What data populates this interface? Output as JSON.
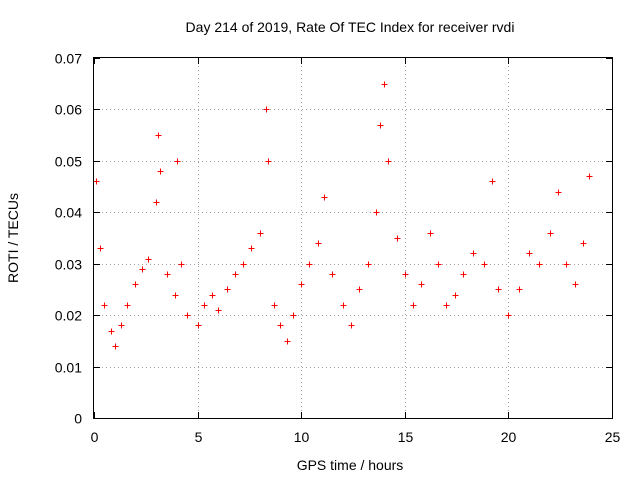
{
  "chart_data": {
    "type": "scatter",
    "title": "Day 214 of 2019, Rate Of TEC Index for receiver rvdi",
    "xlabel": "GPS time / hours",
    "ylabel": "ROTI / TECUs",
    "xlim": [
      0,
      25
    ],
    "ylim": [
      0,
      0.07
    ],
    "xticks": [
      0,
      5,
      10,
      15,
      20,
      25
    ],
    "xtick_labels": [
      "0",
      "5",
      "10",
      "15",
      "20",
      "25"
    ],
    "yticks": [
      0,
      0.01,
      0.02,
      0.03,
      0.04,
      0.05,
      0.06,
      0.07
    ],
    "ytick_labels": [
      "0",
      "0.01",
      "0.02",
      "0.03",
      "0.04",
      "0.05",
      "0.06",
      "0.07"
    ],
    "grid": true,
    "marker": "plus",
    "color": "#ff0000",
    "series": [
      {
        "name": "ROTI",
        "x": [
          0.1,
          0.3,
          0.5,
          0.8,
          1.0,
          1.3,
          1.6,
          2.0,
          2.3,
          2.6,
          3.0,
          3.1,
          3.2,
          3.5,
          3.9,
          4.0,
          4.2,
          4.5,
          5.0,
          5.3,
          5.7,
          6.0,
          6.4,
          6.8,
          7.2,
          7.6,
          8.0,
          8.3,
          8.4,
          8.7,
          9.0,
          9.3,
          9.6,
          10.0,
          10.4,
          10.8,
          11.1,
          11.5,
          12.0,
          12.4,
          12.8,
          13.2,
          13.6,
          13.8,
          14.0,
          14.2,
          14.6,
          15.0,
          15.4,
          15.8,
          16.2,
          16.6,
          17.0,
          17.4,
          17.8,
          18.3,
          18.8,
          19.2,
          19.5,
          20.0,
          20.5,
          21.0,
          21.5,
          22.0,
          22.4,
          22.8,
          23.2,
          23.6,
          23.9
        ],
        "y": [
          0.046,
          0.033,
          0.022,
          0.017,
          0.014,
          0.018,
          0.022,
          0.026,
          0.029,
          0.031,
          0.042,
          0.055,
          0.048,
          0.028,
          0.024,
          0.05,
          0.03,
          0.02,
          0.018,
          0.022,
          0.024,
          0.021,
          0.025,
          0.028,
          0.03,
          0.033,
          0.036,
          0.06,
          0.05,
          0.022,
          0.018,
          0.015,
          0.02,
          0.026,
          0.03,
          0.034,
          0.043,
          0.028,
          0.022,
          0.018,
          0.025,
          0.03,
          0.04,
          0.057,
          0.065,
          0.05,
          0.035,
          0.028,
          0.022,
          0.026,
          0.036,
          0.03,
          0.022,
          0.024,
          0.028,
          0.032,
          0.03,
          0.046,
          0.025,
          0.02,
          0.025,
          0.032,
          0.03,
          0.036,
          0.044,
          0.03,
          0.026,
          0.034,
          0.047
        ]
      }
    ]
  }
}
